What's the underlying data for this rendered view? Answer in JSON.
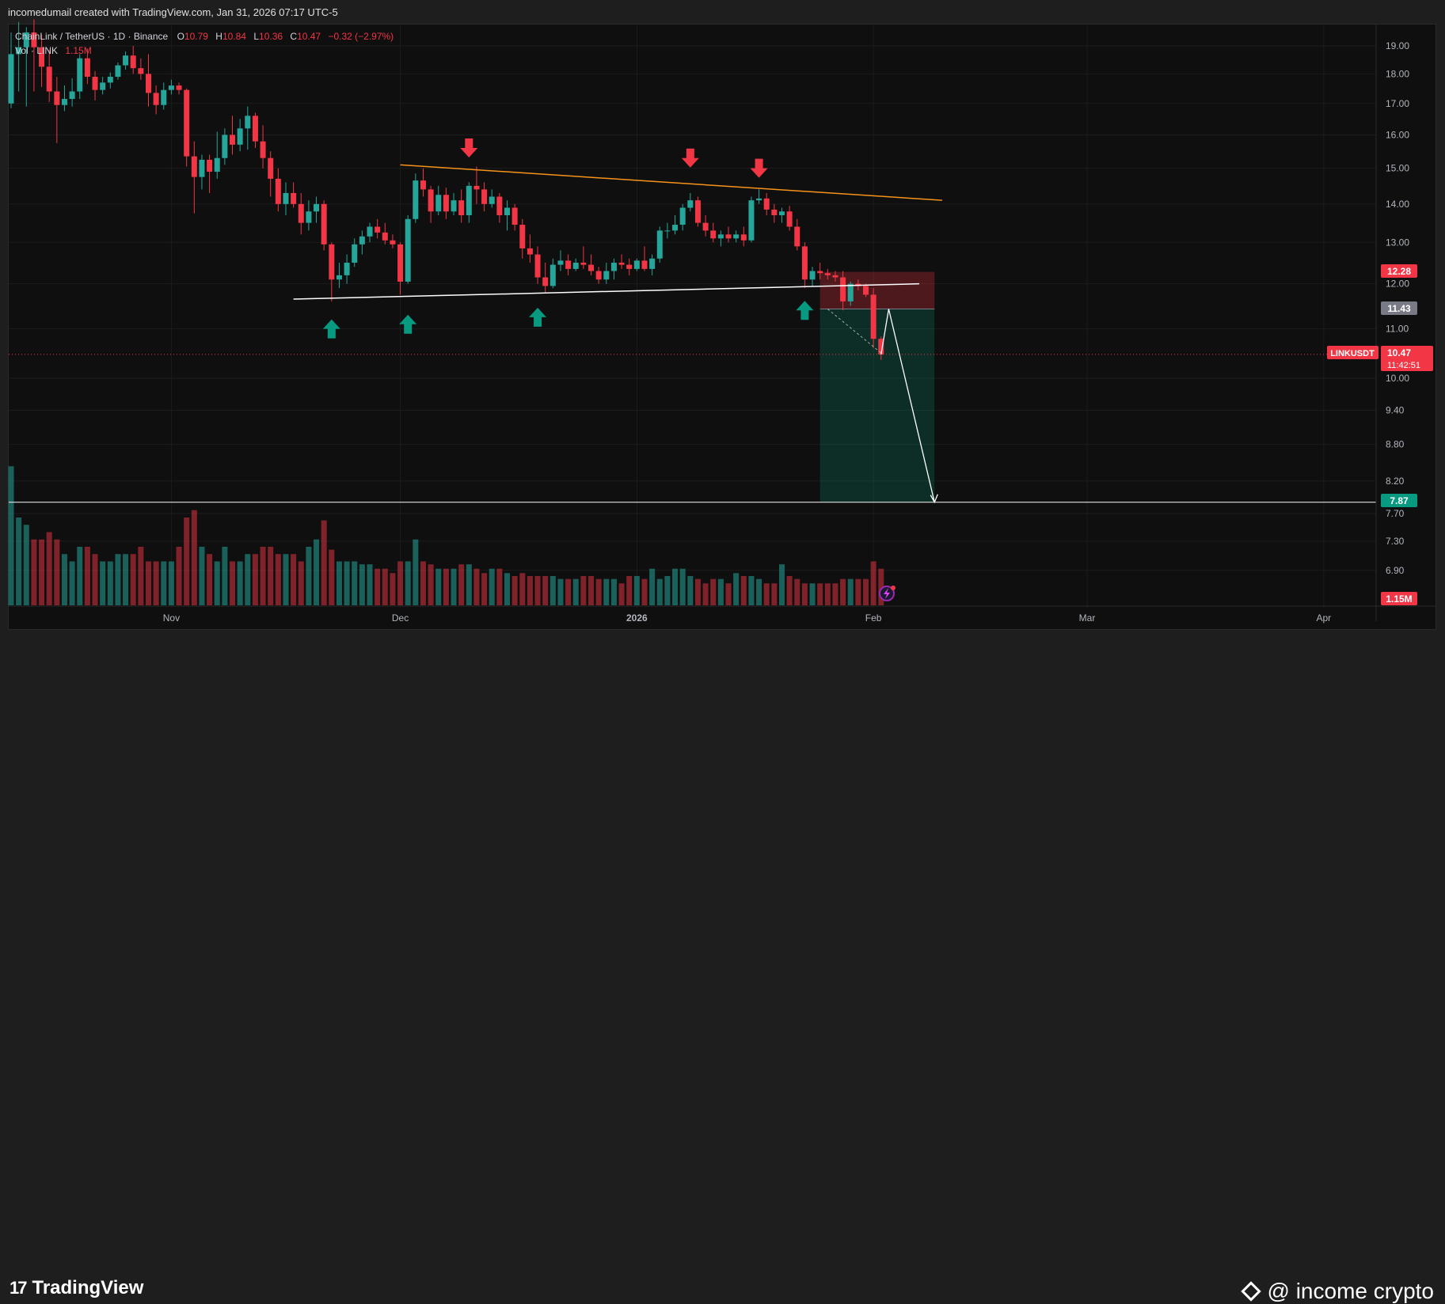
{
  "header": {
    "attribution": "incomedumail created with TradingView.com, Jan 31, 2026 07:17 UTC-5"
  },
  "legend": {
    "symbol": "ChainLink / TetherUS · 1D · Binance",
    "o_label": "O",
    "o_value": "10.79",
    "h_label": "H",
    "h_value": "10.84",
    "l_label": "L",
    "l_value": "10.36",
    "c_label": "C",
    "c_value": "10.47",
    "change": "−0.32 (−2.97%)",
    "vol_label": "Vol · LINK",
    "vol_value": "1.15M"
  },
  "price_axis": {
    "ticks": [
      "19.00",
      "18.00",
      "17.00",
      "16.00",
      "15.00",
      "14.00",
      "13.00",
      "12.00",
      "11.00",
      "10.00",
      "9.40",
      "8.80",
      "8.20",
      "7.70",
      "7.30",
      "6.90"
    ],
    "badges": {
      "stop": "12.28",
      "entry": "11.43",
      "symbol_tag": "LINKUSDT",
      "last": "10.47",
      "countdown": "11:42:51",
      "target": "7.87",
      "volume": "1.15M"
    }
  },
  "time_axis": {
    "labels": [
      "Nov",
      "Dec",
      "2026",
      "Feb",
      "Mar",
      "Apr"
    ]
  },
  "footer": {
    "brand": "TradingView",
    "watermark": "@ income crypto"
  },
  "colors": {
    "bull": "#26a69a",
    "bear": "#f23645",
    "trend": "#f7931a",
    "background": "#0f0f0f",
    "support": "#ffffff"
  },
  "chart_data": {
    "type": "candlestick",
    "symbol": "ChainLink / TetherUS",
    "interval": "1D",
    "exchange": "Binance",
    "x_range": [
      "2025-10-11",
      "2026-04-06"
    ],
    "y_scale": "log",
    "y_range": [
      6.55,
      20.2
    ],
    "candles": [
      {
        "d": "2025-10-11",
        "o": 17.0,
        "h": 19.5,
        "l": 16.85,
        "c": 18.7
      },
      {
        "d": "2025-10-12",
        "o": 18.7,
        "h": 19.9,
        "l": 17.4,
        "c": 18.95
      },
      {
        "d": "2025-10-13",
        "o": 18.95,
        "h": 19.7,
        "l": 16.9,
        "c": 19.5
      },
      {
        "d": "2025-10-14",
        "o": 19.5,
        "h": 20.0,
        "l": 17.4,
        "c": 18.95
      },
      {
        "d": "2025-10-15",
        "o": 18.95,
        "h": 19.4,
        "l": 17.55,
        "c": 18.25
      },
      {
        "d": "2025-10-16",
        "o": 18.25,
        "h": 18.85,
        "l": 17.05,
        "c": 17.4
      },
      {
        "d": "2025-10-17",
        "o": 17.4,
        "h": 17.9,
        "l": 15.75,
        "c": 16.95
      },
      {
        "d": "2025-10-18",
        "o": 16.95,
        "h": 17.6,
        "l": 16.75,
        "c": 17.15
      },
      {
        "d": "2025-10-19",
        "o": 17.15,
        "h": 17.85,
        "l": 16.9,
        "c": 17.4
      },
      {
        "d": "2025-10-20",
        "o": 17.4,
        "h": 18.7,
        "l": 17.15,
        "c": 18.55
      },
      {
        "d": "2025-10-21",
        "o": 18.55,
        "h": 18.9,
        "l": 17.65,
        "c": 17.9
      },
      {
        "d": "2025-10-22",
        "o": 17.9,
        "h": 18.1,
        "l": 17.1,
        "c": 17.45
      },
      {
        "d": "2025-10-23",
        "o": 17.45,
        "h": 17.9,
        "l": 17.3,
        "c": 17.7
      },
      {
        "d": "2025-10-24",
        "o": 17.7,
        "h": 18.05,
        "l": 17.5,
        "c": 17.9
      },
      {
        "d": "2025-10-25",
        "o": 17.9,
        "h": 18.4,
        "l": 17.8,
        "c": 18.3
      },
      {
        "d": "2025-10-26",
        "o": 18.3,
        "h": 18.8,
        "l": 18.15,
        "c": 18.65
      },
      {
        "d": "2025-10-27",
        "o": 18.65,
        "h": 19.0,
        "l": 18.0,
        "c": 18.2
      },
      {
        "d": "2025-10-28",
        "o": 18.2,
        "h": 18.55,
        "l": 17.8,
        "c": 18.0
      },
      {
        "d": "2025-10-29",
        "o": 18.0,
        "h": 18.7,
        "l": 16.9,
        "c": 17.35
      },
      {
        "d": "2025-10-30",
        "o": 17.35,
        "h": 17.6,
        "l": 16.65,
        "c": 16.95
      },
      {
        "d": "2025-10-31",
        "o": 16.95,
        "h": 17.7,
        "l": 16.8,
        "c": 17.45
      },
      {
        "d": "2025-11-01",
        "o": 17.45,
        "h": 17.8,
        "l": 17.3,
        "c": 17.6
      },
      {
        "d": "2025-11-02",
        "o": 17.6,
        "h": 17.7,
        "l": 17.3,
        "c": 17.45
      },
      {
        "d": "2025-11-03",
        "o": 17.45,
        "h": 17.5,
        "l": 15.05,
        "c": 15.35
      },
      {
        "d": "2025-11-04",
        "o": 15.35,
        "h": 15.8,
        "l": 13.75,
        "c": 14.75
      },
      {
        "d": "2025-11-05",
        "o": 14.75,
        "h": 15.4,
        "l": 14.4,
        "c": 15.25
      },
      {
        "d": "2025-11-06",
        "o": 15.25,
        "h": 15.4,
        "l": 14.3,
        "c": 14.9
      },
      {
        "d": "2025-11-07",
        "o": 14.9,
        "h": 16.1,
        "l": 14.7,
        "c": 15.3
      },
      {
        "d": "2025-11-08",
        "o": 15.3,
        "h": 16.2,
        "l": 15.1,
        "c": 16.0
      },
      {
        "d": "2025-11-09",
        "o": 16.0,
        "h": 16.6,
        "l": 15.4,
        "c": 15.7
      },
      {
        "d": "2025-11-10",
        "o": 15.7,
        "h": 16.5,
        "l": 15.5,
        "c": 16.2
      },
      {
        "d": "2025-11-11",
        "o": 16.2,
        "h": 16.9,
        "l": 15.55,
        "c": 16.6
      },
      {
        "d": "2025-11-12",
        "o": 16.6,
        "h": 16.7,
        "l": 15.6,
        "c": 15.8
      },
      {
        "d": "2025-11-13",
        "o": 15.8,
        "h": 16.3,
        "l": 15.0,
        "c": 15.3
      },
      {
        "d": "2025-11-14",
        "o": 15.3,
        "h": 15.5,
        "l": 14.2,
        "c": 14.7
      },
      {
        "d": "2025-11-15",
        "o": 14.7,
        "h": 15.0,
        "l": 13.8,
        "c": 14.0
      },
      {
        "d": "2025-11-16",
        "o": 14.0,
        "h": 14.6,
        "l": 13.7,
        "c": 14.3
      },
      {
        "d": "2025-11-17",
        "o": 14.3,
        "h": 14.6,
        "l": 13.9,
        "c": 14.0
      },
      {
        "d": "2025-11-18",
        "o": 14.0,
        "h": 14.3,
        "l": 13.2,
        "c": 13.5
      },
      {
        "d": "2025-11-19",
        "o": 13.5,
        "h": 14.1,
        "l": 13.3,
        "c": 13.8
      },
      {
        "d": "2025-11-20",
        "o": 13.8,
        "h": 14.2,
        "l": 13.5,
        "c": 14.0
      },
      {
        "d": "2025-11-21",
        "o": 14.0,
        "h": 14.1,
        "l": 12.8,
        "c": 12.95
      },
      {
        "d": "2025-11-22",
        "o": 12.95,
        "h": 13.0,
        "l": 11.6,
        "c": 12.1
      },
      {
        "d": "2025-11-23",
        "o": 12.1,
        "h": 12.5,
        "l": 11.9,
        "c": 12.2
      },
      {
        "d": "2025-11-24",
        "o": 12.2,
        "h": 12.7,
        "l": 12.0,
        "c": 12.5
      },
      {
        "d": "2025-11-25",
        "o": 12.5,
        "h": 13.1,
        "l": 12.4,
        "c": 12.95
      },
      {
        "d": "2025-11-26",
        "o": 12.95,
        "h": 13.3,
        "l": 12.7,
        "c": 13.15
      },
      {
        "d": "2025-11-27",
        "o": 13.15,
        "h": 13.5,
        "l": 13.0,
        "c": 13.4
      },
      {
        "d": "2025-11-28",
        "o": 13.4,
        "h": 13.6,
        "l": 13.1,
        "c": 13.25
      },
      {
        "d": "2025-11-29",
        "o": 13.25,
        "h": 13.5,
        "l": 12.95,
        "c": 13.05
      },
      {
        "d": "2025-11-30",
        "o": 13.05,
        "h": 13.2,
        "l": 12.85,
        "c": 12.95
      },
      {
        "d": "2025-12-01",
        "o": 12.95,
        "h": 13.0,
        "l": 11.75,
        "c": 12.05
      },
      {
        "d": "2025-12-02",
        "o": 12.05,
        "h": 13.7,
        "l": 12.0,
        "c": 13.6
      },
      {
        "d": "2025-12-03",
        "o": 13.6,
        "h": 14.85,
        "l": 13.5,
        "c": 14.65
      },
      {
        "d": "2025-12-04",
        "o": 14.65,
        "h": 15.0,
        "l": 14.2,
        "c": 14.4
      },
      {
        "d": "2025-12-05",
        "o": 14.4,
        "h": 14.5,
        "l": 13.5,
        "c": 13.8
      },
      {
        "d": "2025-12-06",
        "o": 13.8,
        "h": 14.5,
        "l": 13.7,
        "c": 14.25
      },
      {
        "d": "2025-12-07",
        "o": 14.25,
        "h": 14.45,
        "l": 13.6,
        "c": 13.8
      },
      {
        "d": "2025-12-08",
        "o": 13.8,
        "h": 14.3,
        "l": 13.7,
        "c": 14.1
      },
      {
        "d": "2025-12-09",
        "o": 14.1,
        "h": 14.4,
        "l": 13.5,
        "c": 13.7
      },
      {
        "d": "2025-12-10",
        "o": 13.7,
        "h": 14.6,
        "l": 13.5,
        "c": 14.5
      },
      {
        "d": "2025-12-11",
        "o": 14.5,
        "h": 15.05,
        "l": 14.0,
        "c": 14.4
      },
      {
        "d": "2025-12-12",
        "o": 14.4,
        "h": 14.6,
        "l": 13.8,
        "c": 14.0
      },
      {
        "d": "2025-12-13",
        "o": 14.0,
        "h": 14.4,
        "l": 13.9,
        "c": 14.2
      },
      {
        "d": "2025-12-14",
        "o": 14.2,
        "h": 14.3,
        "l": 13.5,
        "c": 13.7
      },
      {
        "d": "2025-12-15",
        "o": 13.7,
        "h": 14.1,
        "l": 13.3,
        "c": 13.9
      },
      {
        "d": "2025-12-16",
        "o": 13.9,
        "h": 14.0,
        "l": 13.3,
        "c": 13.45
      },
      {
        "d": "2025-12-17",
        "o": 13.45,
        "h": 13.6,
        "l": 12.6,
        "c": 12.85
      },
      {
        "d": "2025-12-18",
        "o": 12.85,
        "h": 13.2,
        "l": 12.5,
        "c": 12.7
      },
      {
        "d": "2025-12-19",
        "o": 12.7,
        "h": 12.9,
        "l": 12.0,
        "c": 12.15
      },
      {
        "d": "2025-12-20",
        "o": 12.15,
        "h": 12.5,
        "l": 11.8,
        "c": 11.95
      },
      {
        "d": "2025-12-21",
        "o": 11.95,
        "h": 12.6,
        "l": 11.9,
        "c": 12.45
      },
      {
        "d": "2025-12-22",
        "o": 12.45,
        "h": 12.8,
        "l": 12.3,
        "c": 12.55
      },
      {
        "d": "2025-12-23",
        "o": 12.55,
        "h": 12.7,
        "l": 12.2,
        "c": 12.35
      },
      {
        "d": "2025-12-24",
        "o": 12.35,
        "h": 12.6,
        "l": 12.3,
        "c": 12.5
      },
      {
        "d": "2025-12-25",
        "o": 12.5,
        "h": 12.9,
        "l": 12.35,
        "c": 12.45
      },
      {
        "d": "2025-12-26",
        "o": 12.45,
        "h": 12.7,
        "l": 12.2,
        "c": 12.3
      },
      {
        "d": "2025-12-27",
        "o": 12.3,
        "h": 12.4,
        "l": 12.0,
        "c": 12.1
      },
      {
        "d": "2025-12-28",
        "o": 12.1,
        "h": 12.5,
        "l": 12.0,
        "c": 12.3
      },
      {
        "d": "2025-12-29",
        "o": 12.3,
        "h": 12.6,
        "l": 12.1,
        "c": 12.5
      },
      {
        "d": "2025-12-30",
        "o": 12.5,
        "h": 12.7,
        "l": 12.35,
        "c": 12.45
      },
      {
        "d": "2025-12-31",
        "o": 12.45,
        "h": 12.6,
        "l": 12.2,
        "c": 12.35
      },
      {
        "d": "2026-01-01",
        "o": 12.35,
        "h": 12.6,
        "l": 12.3,
        "c": 12.55
      },
      {
        "d": "2026-01-02",
        "o": 12.55,
        "h": 12.9,
        "l": 12.3,
        "c": 12.35
      },
      {
        "d": "2026-01-03",
        "o": 12.35,
        "h": 12.7,
        "l": 12.2,
        "c": 12.6
      },
      {
        "d": "2026-01-04",
        "o": 12.6,
        "h": 13.4,
        "l": 12.5,
        "c": 13.3
      },
      {
        "d": "2026-01-05",
        "o": 13.3,
        "h": 13.5,
        "l": 13.1,
        "c": 13.3
      },
      {
        "d": "2026-01-06",
        "o": 13.3,
        "h": 13.7,
        "l": 13.2,
        "c": 13.45
      },
      {
        "d": "2026-01-07",
        "o": 13.45,
        "h": 14.0,
        "l": 13.3,
        "c": 13.9
      },
      {
        "d": "2026-01-08",
        "o": 13.9,
        "h": 14.3,
        "l": 13.8,
        "c": 14.1
      },
      {
        "d": "2026-01-09",
        "o": 14.1,
        "h": 14.2,
        "l": 13.4,
        "c": 13.5
      },
      {
        "d": "2026-01-10",
        "o": 13.5,
        "h": 13.7,
        "l": 13.15,
        "c": 13.3
      },
      {
        "d": "2026-01-11",
        "o": 13.3,
        "h": 13.5,
        "l": 13.0,
        "c": 13.1
      },
      {
        "d": "2026-01-12",
        "o": 13.1,
        "h": 13.3,
        "l": 12.9,
        "c": 13.2
      },
      {
        "d": "2026-01-13",
        "o": 13.2,
        "h": 13.4,
        "l": 13.0,
        "c": 13.1
      },
      {
        "d": "2026-01-14",
        "o": 13.1,
        "h": 13.3,
        "l": 13.0,
        "c": 13.2
      },
      {
        "d": "2026-01-15",
        "o": 13.2,
        "h": 13.4,
        "l": 12.9,
        "c": 13.05
      },
      {
        "d": "2026-01-16",
        "o": 13.05,
        "h": 14.2,
        "l": 13.0,
        "c": 14.1
      },
      {
        "d": "2026-01-17",
        "o": 14.1,
        "h": 14.4,
        "l": 14.0,
        "c": 14.15
      },
      {
        "d": "2026-01-18",
        "o": 14.15,
        "h": 14.3,
        "l": 13.7,
        "c": 13.85
      },
      {
        "d": "2026-01-19",
        "o": 13.85,
        "h": 14.0,
        "l": 13.5,
        "c": 13.7
      },
      {
        "d": "2026-01-20",
        "o": 13.7,
        "h": 13.9,
        "l": 13.5,
        "c": 13.8
      },
      {
        "d": "2026-01-21",
        "o": 13.8,
        "h": 13.95,
        "l": 13.3,
        "c": 13.4
      },
      {
        "d": "2026-01-22",
        "o": 13.4,
        "h": 13.6,
        "l": 12.8,
        "c": 12.9
      },
      {
        "d": "2026-01-23",
        "o": 12.9,
        "h": 13.0,
        "l": 11.9,
        "c": 12.1
      },
      {
        "d": "2026-01-24",
        "o": 12.1,
        "h": 12.4,
        "l": 11.95,
        "c": 12.3
      },
      {
        "d": "2026-01-25",
        "o": 12.3,
        "h": 12.5,
        "l": 12.1,
        "c": 12.25
      },
      {
        "d": "2026-01-26",
        "o": 12.25,
        "h": 12.35,
        "l": 12.1,
        "c": 12.2
      },
      {
        "d": "2026-01-27",
        "o": 12.2,
        "h": 12.3,
        "l": 12.05,
        "c": 12.15
      },
      {
        "d": "2026-01-28",
        "o": 12.15,
        "h": 12.3,
        "l": 11.4,
        "c": 11.6
      },
      {
        "d": "2026-01-29",
        "o": 11.6,
        "h": 12.05,
        "l": 11.5,
        "c": 12.0
      },
      {
        "d": "2026-01-30",
        "o": 12.0,
        "h": 12.1,
        "l": 11.85,
        "c": 11.95
      },
      {
        "d": "2026-01-31",
        "o": 11.95,
        "h": 12.0,
        "l": 11.7,
        "c": 11.75
      },
      {
        "d": "2026-02-01",
        "o": 11.75,
        "h": 11.9,
        "l": 10.6,
        "c": 10.79
      },
      {
        "d": "2026-02-02",
        "o": 10.79,
        "h": 10.84,
        "l": 10.36,
        "c": 10.47
      }
    ],
    "volume": [
      0.95,
      0.6,
      0.55,
      0.45,
      0.45,
      0.5,
      0.45,
      0.35,
      0.3,
      0.4,
      0.4,
      0.35,
      0.3,
      0.3,
      0.35,
      0.35,
      0.35,
      0.4,
      0.3,
      0.3,
      0.3,
      0.3,
      0.4,
      0.6,
      0.65,
      0.4,
      0.35,
      0.3,
      0.4,
      0.3,
      0.3,
      0.35,
      0.35,
      0.4,
      0.4,
      0.35,
      0.35,
      0.35,
      0.3,
      0.4,
      0.45,
      0.58,
      0.38,
      0.3,
      0.3,
      0.3,
      0.28,
      0.28,
      0.25,
      0.25,
      0.22,
      0.3,
      0.3,
      0.45,
      0.3,
      0.28,
      0.25,
      0.25,
      0.25,
      0.28,
      0.28,
      0.25,
      0.22,
      0.25,
      0.25,
      0.22,
      0.2,
      0.22,
      0.2,
      0.2,
      0.2,
      0.2,
      0.18,
      0.18,
      0.18,
      0.2,
      0.2,
      0.18,
      0.18,
      0.18,
      0.15,
      0.2,
      0.2,
      0.18,
      0.25,
      0.18,
      0.2,
      0.25,
      0.25,
      0.2,
      0.18,
      0.15,
      0.18,
      0.18,
      0.15,
      0.22,
      0.2,
      0.2,
      0.18,
      0.15,
      0.15,
      0.28,
      0.2,
      0.18,
      0.15,
      0.15,
      0.15,
      0.15,
      0.15,
      0.18,
      0.18,
      0.18,
      0.18,
      0.3,
      0.25
    ],
    "annotations": {
      "resistance": {
        "from": {
          "d": "2025-12-01",
          "p": 15.1
        },
        "to": {
          "d": "2026-02-10",
          "p": 14.1
        }
      },
      "support": {
        "from": {
          "d": "2025-11-17",
          "p": 11.65
        },
        "to": {
          "d": "2026-02-07",
          "p": 12.0
        }
      },
      "down_arrows": [
        {
          "d": "2025-12-10",
          "p": 15.6
        },
        {
          "d": "2026-01-08",
          "p": 15.3
        },
        {
          "d": "2026-01-17",
          "p": 15.0
        }
      ],
      "up_arrows": [
        {
          "d": "2025-11-22",
          "p": 11.0
        },
        {
          "d": "2025-12-02",
          "p": 11.1
        },
        {
          "d": "2025-12-19",
          "p": 11.25
        },
        {
          "d": "2026-01-23",
          "p": 11.4
        }
      ],
      "short_position": {
        "from": "2026-01-25",
        "to": "2026-02-09",
        "stop": 12.28,
        "entry": 11.43,
        "target": 7.87
      },
      "projection": [
        {
          "d": "2026-02-02",
          "p": 10.47
        },
        {
          "d": "2026-02-03",
          "p": 11.43
        },
        {
          "d": "2026-02-09",
          "p": 7.87
        }
      ],
      "target_level": 7.87
    }
  }
}
